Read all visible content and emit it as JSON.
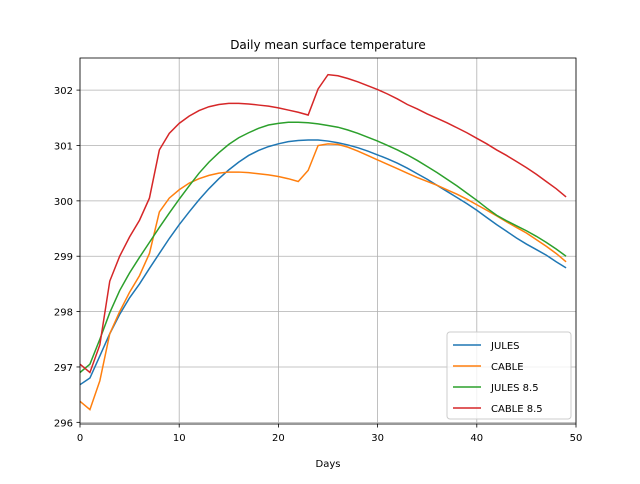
{
  "chart_data": {
    "type": "line",
    "title": "Daily mean surface temperature",
    "x_label": "Days",
    "x": [
      0,
      1,
      2,
      3,
      4,
      5,
      6,
      7,
      8,
      9,
      10,
      11,
      12,
      13,
      14,
      15,
      16,
      17,
      18,
      19,
      20,
      21,
      22,
      23,
      24,
      25,
      26,
      27,
      28,
      29,
      30,
      31,
      32,
      33,
      34,
      35,
      36,
      37,
      38,
      39,
      40,
      41,
      42,
      43,
      44,
      45,
      46,
      47,
      48,
      49
    ],
    "series": [
      {
        "name": "JULES",
        "color": "#1f77b4",
        "values": [
          296.68,
          296.8,
          297.2,
          297.6,
          297.95,
          298.25,
          298.5,
          298.78,
          299.05,
          299.32,
          299.57,
          299.8,
          300.02,
          300.22,
          300.4,
          300.56,
          300.7,
          300.82,
          300.91,
          300.98,
          301.03,
          301.07,
          301.09,
          301.1,
          301.1,
          301.08,
          301.05,
          301.01,
          300.96,
          300.9,
          300.83,
          300.76,
          300.68,
          300.59,
          300.49,
          300.39,
          300.28,
          300.17,
          300.06,
          299.95,
          299.83,
          299.7,
          299.57,
          299.45,
          299.33,
          299.22,
          299.12,
          299.02,
          298.9,
          298.79
        ]
      },
      {
        "name": "CABLE",
        "color": "#ff7f0e",
        "values": [
          296.38,
          296.23,
          296.75,
          297.6,
          298.0,
          298.35,
          298.65,
          299.05,
          299.8,
          300.05,
          300.2,
          300.32,
          300.4,
          300.46,
          300.5,
          300.52,
          300.52,
          300.51,
          300.49,
          300.47,
          300.44,
          300.4,
          300.35,
          300.55,
          301.0,
          301.03,
          301.02,
          300.97,
          300.9,
          300.82,
          300.74,
          300.66,
          300.58,
          300.5,
          300.42,
          300.35,
          300.28,
          300.2,
          300.12,
          300.03,
          299.93,
          299.83,
          299.73,
          299.62,
          299.52,
          299.42,
          299.3,
          299.18,
          299.05,
          298.9
        ]
      },
      {
        "name": "JULES 8.5",
        "color": "#2ca02c",
        "values": [
          296.9,
          297.05,
          297.5,
          297.98,
          298.38,
          298.7,
          298.98,
          299.25,
          299.52,
          299.78,
          300.03,
          300.27,
          300.5,
          300.7,
          300.87,
          301.02,
          301.14,
          301.23,
          301.31,
          301.37,
          301.4,
          301.42,
          301.42,
          301.41,
          301.39,
          301.36,
          301.33,
          301.28,
          301.22,
          301.15,
          301.08,
          301.0,
          300.92,
          300.83,
          300.73,
          300.62,
          300.51,
          300.39,
          300.27,
          300.14,
          300.01,
          299.87,
          299.74,
          299.64,
          299.55,
          299.46,
          299.36,
          299.25,
          299.13,
          299.0
        ]
      },
      {
        "name": "CABLE 8.5",
        "color": "#d62728",
        "values": [
          297.05,
          296.9,
          297.4,
          298.55,
          299.0,
          299.35,
          299.65,
          300.05,
          300.92,
          301.22,
          301.4,
          301.53,
          301.63,
          301.7,
          301.74,
          301.76,
          301.76,
          301.75,
          301.73,
          301.71,
          301.68,
          301.64,
          301.6,
          301.55,
          302.02,
          302.28,
          302.26,
          302.21,
          302.15,
          302.08,
          302.01,
          301.93,
          301.84,
          301.74,
          301.66,
          301.57,
          301.49,
          301.41,
          301.32,
          301.23,
          301.13,
          301.03,
          300.92,
          300.82,
          300.71,
          300.6,
          300.48,
          300.35,
          300.22,
          300.07
        ]
      }
    ],
    "xlim": [
      0,
      50
    ],
    "ylim": [
      295.97,
      302.58
    ],
    "xticks": [
      0,
      10,
      20,
      30,
      40,
      50
    ],
    "yticks": [
      296,
      297,
      298,
      299,
      300,
      301,
      302
    ],
    "grid": true,
    "legend": "lower right"
  }
}
